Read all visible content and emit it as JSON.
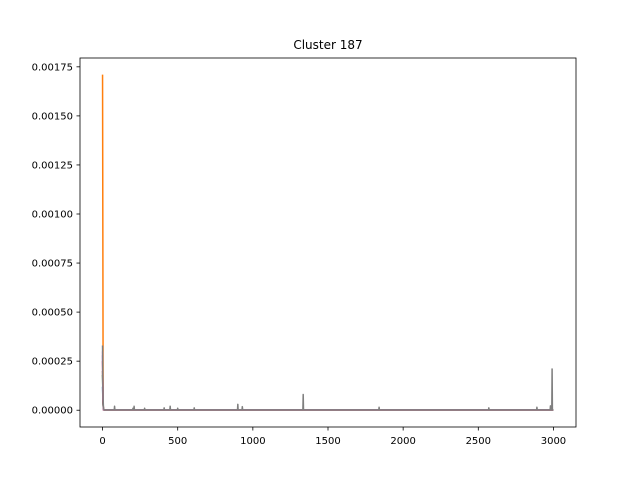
{
  "chart_data": {
    "type": "line",
    "title": "Cluster 187",
    "xlabel": "",
    "ylabel": "",
    "xlim": [
      -150,
      3150
    ],
    "ylim": [
      -8.55e-05,
      0.001795
    ],
    "xticks": [
      0,
      500,
      1000,
      1500,
      2000,
      2500,
      3000
    ],
    "xtick_labels": [
      "0",
      "500",
      "1000",
      "1500",
      "2000",
      "2500",
      "3000"
    ],
    "yticks": [
      0,
      0.00025,
      0.0005,
      0.00075,
      0.001,
      0.00125,
      0.0015,
      0.00175
    ],
    "ytick_labels": [
      "0.00000",
      "0.00025",
      "0.00050",
      "0.00075",
      "0.00100",
      "0.00125",
      "0.00150",
      "0.00175"
    ],
    "grid": false,
    "legend": "none",
    "series": [
      {
        "color": "#1f77b4",
        "points": [
          [
            0,
            0.00012
          ],
          [
            3,
            3e-05
          ],
          [
            6,
            2e-06
          ],
          [
            3000,
            2e-06
          ]
        ]
      },
      {
        "color": "#ff7f0e",
        "points": [
          [
            0,
            0.00171
          ],
          [
            2,
            0.0009
          ],
          [
            4,
            2e-05
          ],
          [
            8,
            2e-06
          ],
          [
            3000,
            2e-06
          ]
        ]
      },
      {
        "color": "#2ca02c",
        "points": [
          [
            0,
            0.00018
          ],
          [
            3,
            4e-05
          ],
          [
            6,
            2e-06
          ],
          [
            3000,
            2e-06
          ]
        ]
      },
      {
        "color": "#d62728",
        "points": [
          [
            0,
            0.00025
          ],
          [
            3,
            5e-05
          ],
          [
            6,
            2e-06
          ],
          [
            3000,
            2e-06
          ]
        ]
      },
      {
        "color": "#9467bd",
        "points": [
          [
            0,
            0.00028
          ],
          [
            3,
            5e-05
          ],
          [
            6,
            2e-06
          ],
          [
            3000,
            2e-06
          ]
        ]
      },
      {
        "color": "#8c564b",
        "points": [
          [
            0,
            0.0002
          ],
          [
            3,
            4e-05
          ],
          [
            6,
            2e-06
          ],
          [
            3000,
            2e-06
          ]
        ]
      },
      {
        "color": "#e377c2",
        "points": [
          [
            0,
            0.0003
          ],
          [
            3,
            6e-05
          ],
          [
            6,
            2e-06
          ],
          [
            3000,
            2e-06
          ]
        ]
      },
      {
        "color": "#7f7f7f",
        "points": [
          [
            0,
            0.00033
          ],
          [
            3,
            8e-05
          ],
          [
            6,
            1e-05
          ],
          [
            10,
            2e-06
          ],
          [
            78,
            2e-06
          ],
          [
            80,
            2e-05
          ],
          [
            82,
            2e-06
          ],
          [
            200,
            2e-06
          ],
          [
            203,
            1e-05
          ],
          [
            206,
            2e-06
          ],
          [
            208,
            2e-06
          ],
          [
            210,
            2e-05
          ],
          [
            212,
            2e-06
          ],
          [
            278,
            2e-06
          ],
          [
            280,
            1e-05
          ],
          [
            282,
            2e-06
          ],
          [
            408,
            2e-06
          ],
          [
            410,
            1.2e-05
          ],
          [
            412,
            2e-06
          ],
          [
            448,
            2e-06
          ],
          [
            450,
            2e-05
          ],
          [
            452,
            2e-06
          ],
          [
            498,
            2e-06
          ],
          [
            500,
            1e-05
          ],
          [
            502,
            2e-06
          ],
          [
            608,
            2e-06
          ],
          [
            610,
            1.2e-05
          ],
          [
            612,
            2e-06
          ],
          [
            898,
            2e-06
          ],
          [
            900,
            3e-05
          ],
          [
            902,
            2e-06
          ],
          [
            928,
            2e-06
          ],
          [
            930,
            1.8e-05
          ],
          [
            932,
            2e-06
          ],
          [
            1333,
            2e-06
          ],
          [
            1335,
            8e-05
          ],
          [
            1337,
            2e-06
          ],
          [
            1838,
            2e-06
          ],
          [
            1840,
            1.5e-05
          ],
          [
            1842,
            2e-06
          ],
          [
            2568,
            2e-06
          ],
          [
            2570,
            1.2e-05
          ],
          [
            2572,
            2e-06
          ],
          [
            2888,
            2e-06
          ],
          [
            2890,
            1.5e-05
          ],
          [
            2892,
            2e-06
          ],
          [
            2978,
            2e-06
          ],
          [
            2980,
            2.2e-05
          ],
          [
            2983,
            2e-06
          ],
          [
            2989,
            2e-06
          ],
          [
            2991,
            0.00021
          ],
          [
            2993,
            2e-06
          ],
          [
            3000,
            2e-06
          ]
        ]
      }
    ]
  }
}
